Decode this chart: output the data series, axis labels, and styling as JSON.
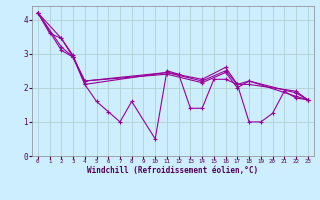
{
  "xlabel": "Windchill (Refroidissement éolien,°C)",
  "ylabel": "",
  "background_color": "#cceeff",
  "grid_color": "#aacccc",
  "line_color": "#990099",
  "xlim": [
    -0.5,
    23.5
  ],
  "ylim": [
    0,
    4.4
  ],
  "yticks": [
    0,
    1,
    2,
    3,
    4
  ],
  "xticks": [
    0,
    1,
    2,
    3,
    4,
    5,
    6,
    7,
    8,
    9,
    10,
    11,
    12,
    13,
    14,
    15,
    16,
    17,
    18,
    19,
    20,
    21,
    22,
    23
  ],
  "series": [
    [
      4.2,
      3.6,
      3.45,
      2.95,
      2.1,
      1.6,
      1.3,
      1.0,
      1.6,
      null,
      0.5,
      2.5,
      2.4,
      1.4,
      1.4,
      2.25,
      2.25,
      2.1,
      1.0,
      1.0,
      1.25,
      1.9,
      1.7,
      1.65
    ],
    [
      4.2,
      null,
      3.45,
      2.9,
      2.1,
      null,
      null,
      null,
      null,
      null,
      null,
      2.45,
      null,
      null,
      2.25,
      null,
      2.6,
      2.1,
      2.1,
      null,
      null,
      null,
      1.9,
      1.65
    ],
    [
      4.2,
      null,
      3.2,
      2.9,
      2.2,
      null,
      null,
      null,
      null,
      null,
      null,
      2.45,
      null,
      null,
      2.2,
      null,
      2.5,
      2.1,
      2.2,
      null,
      null,
      null,
      1.85,
      1.65
    ],
    [
      4.2,
      null,
      3.1,
      2.9,
      2.2,
      null,
      null,
      null,
      null,
      null,
      null,
      2.4,
      null,
      null,
      2.15,
      null,
      2.45,
      2.0,
      2.2,
      null,
      null,
      null,
      1.75,
      1.65
    ]
  ]
}
